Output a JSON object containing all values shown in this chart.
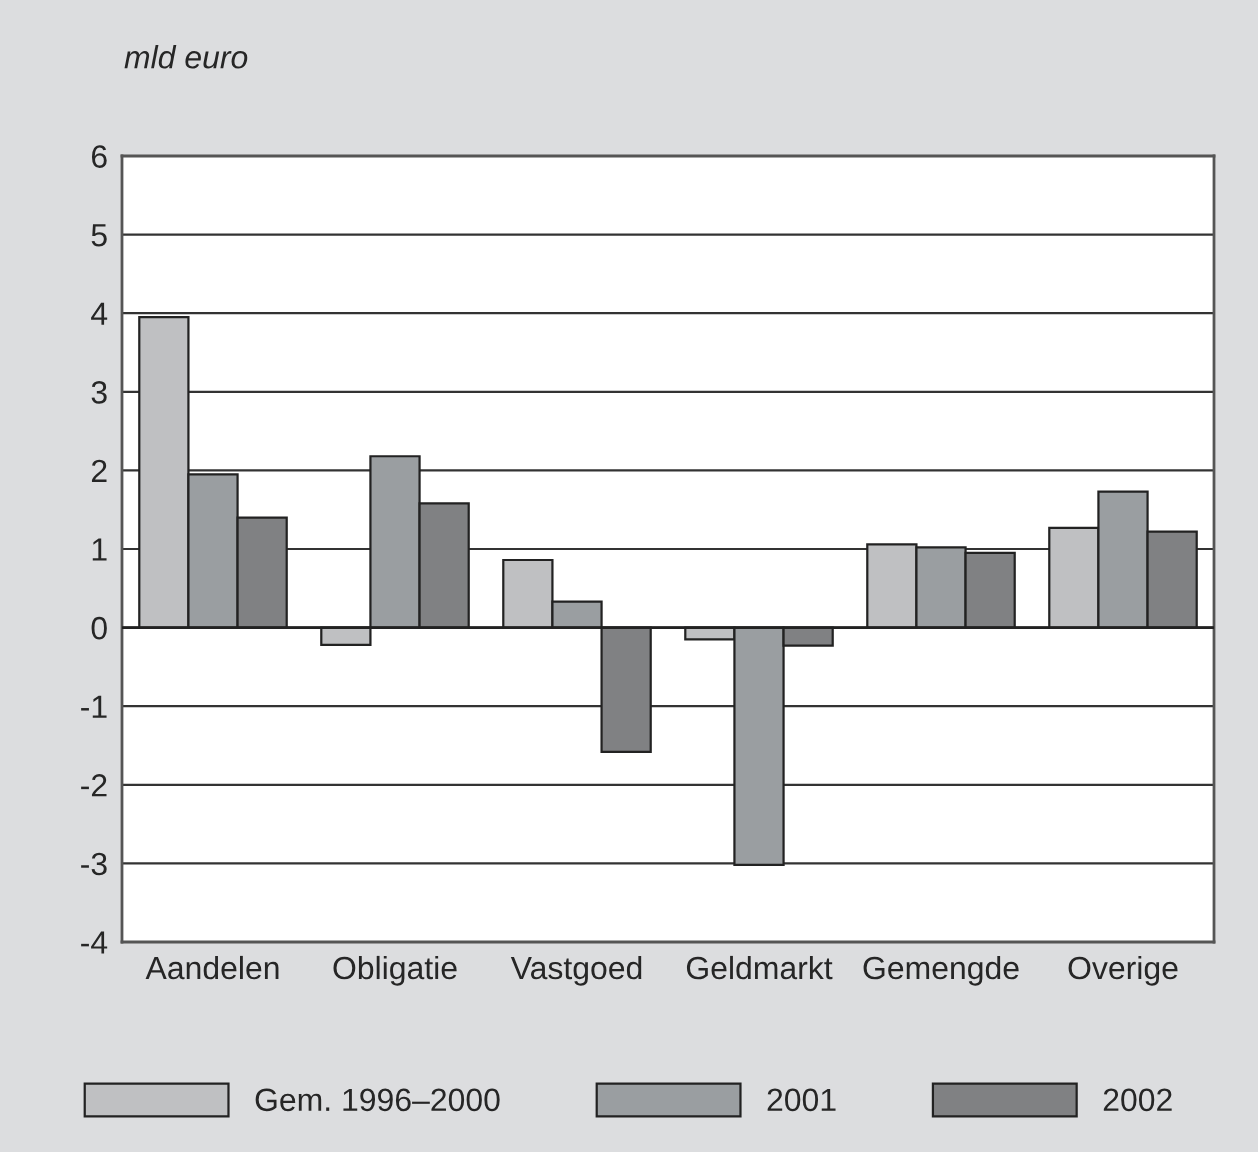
{
  "chart_data": {
    "type": "bar",
    "ylabel": "mld euro",
    "categories": [
      "Aandelen",
      "Obligatie",
      "Vastgoed",
      "Geldmarkt",
      "Gemengde",
      "Overige"
    ],
    "series": [
      {
        "name": "Gem. 1996–2000",
        "color": "#bfc0c2",
        "values": [
          3.95,
          -0.22,
          0.86,
          -0.15,
          1.06,
          1.27
        ]
      },
      {
        "name": "2001",
        "color": "#9a9ea1",
        "values": [
          1.95,
          2.18,
          0.33,
          -3.02,
          1.02,
          1.73
        ]
      },
      {
        "name": "2002",
        "color": "#808183",
        "values": [
          1.4,
          1.58,
          -1.58,
          -0.23,
          0.95,
          1.22
        ]
      }
    ],
    "ylim": [
      -4,
      6
    ],
    "yticks": [
      -4,
      -3,
      -2,
      -1,
      0,
      1,
      2,
      3,
      4,
      5,
      6
    ],
    "grid": "y",
    "legend": "bottom"
  }
}
